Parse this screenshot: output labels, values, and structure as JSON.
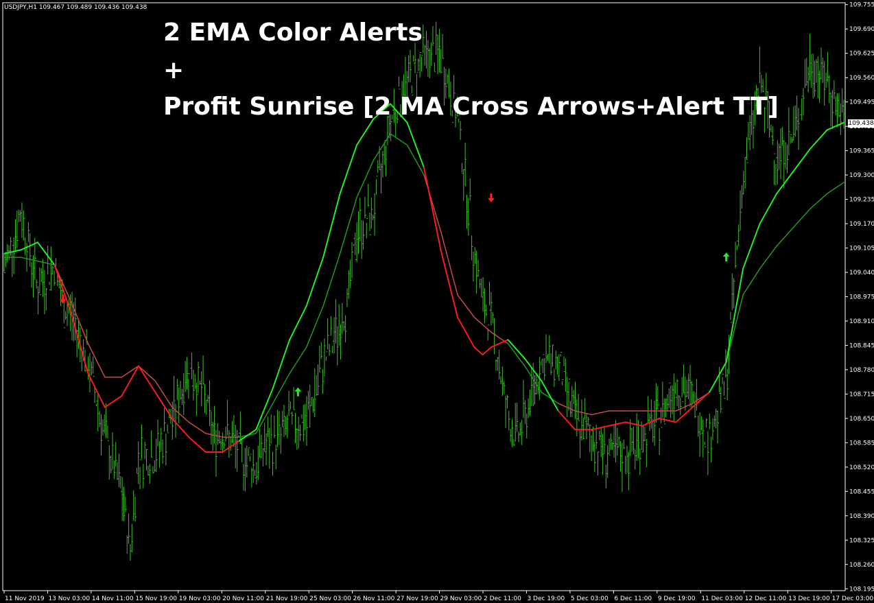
{
  "symbol_info": "USDJPY,H1  109.467 109.489 109.436 109.438",
  "overlay": {
    "line1": "2 EMA Color Alerts",
    "line2": "+",
    "line3": "Profit Sunrise [2 MA Cross Arrows+Alert TT]"
  },
  "current_price": "109.438",
  "colors": {
    "background": "#000000",
    "grid": "#ffffff",
    "bars": "#3fbf2a",
    "fast_up": "#22ee22",
    "slow_up": "#1f9a1f",
    "fast_down": "#ff1a1a",
    "slow_down": "#c84a4a",
    "arrow_up": "#22ee22",
    "arrow_down": "#ff2020"
  },
  "chart_data": {
    "type": "line",
    "y_axis": {
      "range": [
        108.19,
        109.76
      ],
      "ticks": [
        "109.755",
        "109.690",
        "109.625",
        "109.560",
        "109.495",
        "109.430",
        "109.365",
        "109.300",
        "109.235",
        "109.170",
        "109.105",
        "109.040",
        "108.975",
        "108.910",
        "108.845",
        "108.780",
        "108.715",
        "108.650",
        "108.585",
        "108.520",
        "108.455",
        "108.390",
        "108.325",
        "108.260",
        "108.195"
      ]
    },
    "x_axis": {
      "ticks": [
        "11 Nov 2019",
        "13 Nov 03:00",
        "14 Nov 11:00",
        "15 Nov 19:00",
        "19 Nov 03:00",
        "20 Nov 11:00",
        "21 Nov 19:00",
        "25 Nov 03:00",
        "26 Nov 11:00",
        "27 Nov 19:00",
        "29 Nov 03:00",
        "2 Dec 11:00",
        "3 Dec 19:00",
        "5 Dec 03:00",
        "6 Dec 11:00",
        "9 Dec 19:00",
        "11 Dec 03:00",
        "12 Dec 11:00",
        "13 Dec 19:00",
        "17 Dec 03:00"
      ],
      "range": [
        0,
        100
      ]
    },
    "series": [
      {
        "kind": "price_bars",
        "x": [
          0,
          2,
          4,
          6,
          7,
          8,
          10,
          12,
          14,
          15,
          16,
          18,
          20,
          22,
          24,
          25,
          26,
          28,
          30,
          31,
          32,
          34,
          36,
          38,
          40,
          41,
          42,
          44,
          46,
          48,
          50,
          52,
          54,
          56,
          57,
          58,
          60,
          61,
          62,
          64,
          66,
          68,
          70,
          72,
          74,
          76,
          78,
          80,
          82,
          84,
          86,
          88,
          90,
          92,
          94,
          96,
          98,
          100
        ],
        "values": [
          109.05,
          109.2,
          109.0,
          109.06,
          108.95,
          108.93,
          108.8,
          108.6,
          108.45,
          108.3,
          108.55,
          108.55,
          108.65,
          108.79,
          108.7,
          108.6,
          108.62,
          108.56,
          108.52,
          108.58,
          108.58,
          108.64,
          108.64,
          108.8,
          108.9,
          108.97,
          109.15,
          109.2,
          109.45,
          109.55,
          109.62,
          109.62,
          109.45,
          109.1,
          108.95,
          108.92,
          108.65,
          108.6,
          108.65,
          108.8,
          108.8,
          108.65,
          108.6,
          108.55,
          108.55,
          108.6,
          108.65,
          108.75,
          108.7,
          108.6,
          108.75,
          109.3,
          109.55,
          109.35,
          109.4,
          109.6,
          109.55,
          109.44
        ]
      },
      {
        "kind": "fast_ma",
        "x": [
          0,
          2,
          4,
          6,
          8,
          10,
          12,
          14,
          16,
          18,
          20,
          22,
          24,
          26,
          28,
          30,
          32,
          34,
          36,
          38,
          40,
          42,
          44,
          46,
          48,
          50,
          52,
          54,
          56,
          57,
          58,
          60,
          62,
          64,
          66,
          68,
          70,
          72,
          74,
          76,
          78,
          80,
          82,
          84,
          86,
          88,
          90,
          92,
          94,
          96,
          98,
          100
        ],
        "values": [
          109.09,
          109.1,
          109.12,
          109.06,
          108.93,
          108.77,
          108.68,
          108.71,
          108.79,
          108.72,
          108.65,
          108.6,
          108.56,
          108.56,
          108.59,
          108.62,
          108.73,
          108.86,
          108.95,
          109.08,
          109.25,
          109.38,
          109.45,
          109.49,
          109.44,
          109.32,
          109.1,
          108.92,
          108.84,
          108.82,
          108.84,
          108.86,
          108.81,
          108.75,
          108.67,
          108.62,
          108.62,
          108.63,
          108.64,
          108.63,
          108.65,
          108.64,
          108.68,
          108.72,
          108.8,
          109.05,
          109.17,
          109.25,
          109.31,
          109.37,
          109.42,
          109.44
        ]
      },
      {
        "kind": "slow_ma",
        "x": [
          0,
          2,
          4,
          6,
          8,
          10,
          12,
          14,
          16,
          18,
          20,
          22,
          24,
          26,
          28,
          30,
          32,
          34,
          36,
          38,
          40,
          42,
          44,
          46,
          48,
          50,
          52,
          54,
          56,
          58,
          60,
          62,
          64,
          66,
          68,
          70,
          72,
          74,
          76,
          78,
          80,
          82,
          84,
          86,
          88,
          90,
          92,
          94,
          96,
          98,
          100
        ],
        "values": [
          109.08,
          109.08,
          109.07,
          109.06,
          108.96,
          108.85,
          108.76,
          108.76,
          108.79,
          108.75,
          108.68,
          108.64,
          108.61,
          108.6,
          108.6,
          108.61,
          108.69,
          108.77,
          108.84,
          108.95,
          109.09,
          109.24,
          109.34,
          109.41,
          109.38,
          109.3,
          109.15,
          108.98,
          108.92,
          108.88,
          108.85,
          108.79,
          108.72,
          108.69,
          108.67,
          108.66,
          108.67,
          108.67,
          108.67,
          108.67,
          108.67,
          108.69,
          108.72,
          108.8,
          108.98,
          109.05,
          109.11,
          109.16,
          109.21,
          109.25,
          109.28
        ]
      }
    ],
    "signals": [
      {
        "dir": "down",
        "x": 7,
        "value": 108.97
      },
      {
        "dir": "up",
        "x": 35,
        "value": 108.72
      },
      {
        "dir": "down",
        "x": 58,
        "value": 109.24
      },
      {
        "dir": "up",
        "x": 86,
        "value": 109.08
      }
    ]
  }
}
